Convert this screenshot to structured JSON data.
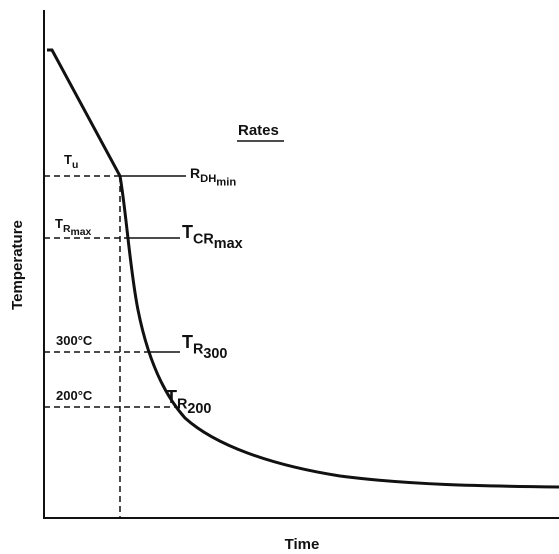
{
  "axes": {
    "x_label": "Time",
    "y_label": "Temperature"
  },
  "rates_heading": "Rates",
  "left_labels": [
    {
      "text": "T",
      "sub": "u"
    },
    {
      "text": "T",
      "sub": "R",
      "subsub": "max"
    },
    {
      "text": "300°C"
    },
    {
      "text": "200°C"
    }
  ],
  "rate_labels": [
    {
      "text": "R",
      "sub": "DH",
      "subsub": "min"
    },
    {
      "text": "T",
      "sub": "CR",
      "subsub": "max"
    },
    {
      "text": "T",
      "sub": "R",
      "subsub": "300"
    },
    {
      "text": "T",
      "sub": "R",
      "subsub": "200"
    }
  ]
}
